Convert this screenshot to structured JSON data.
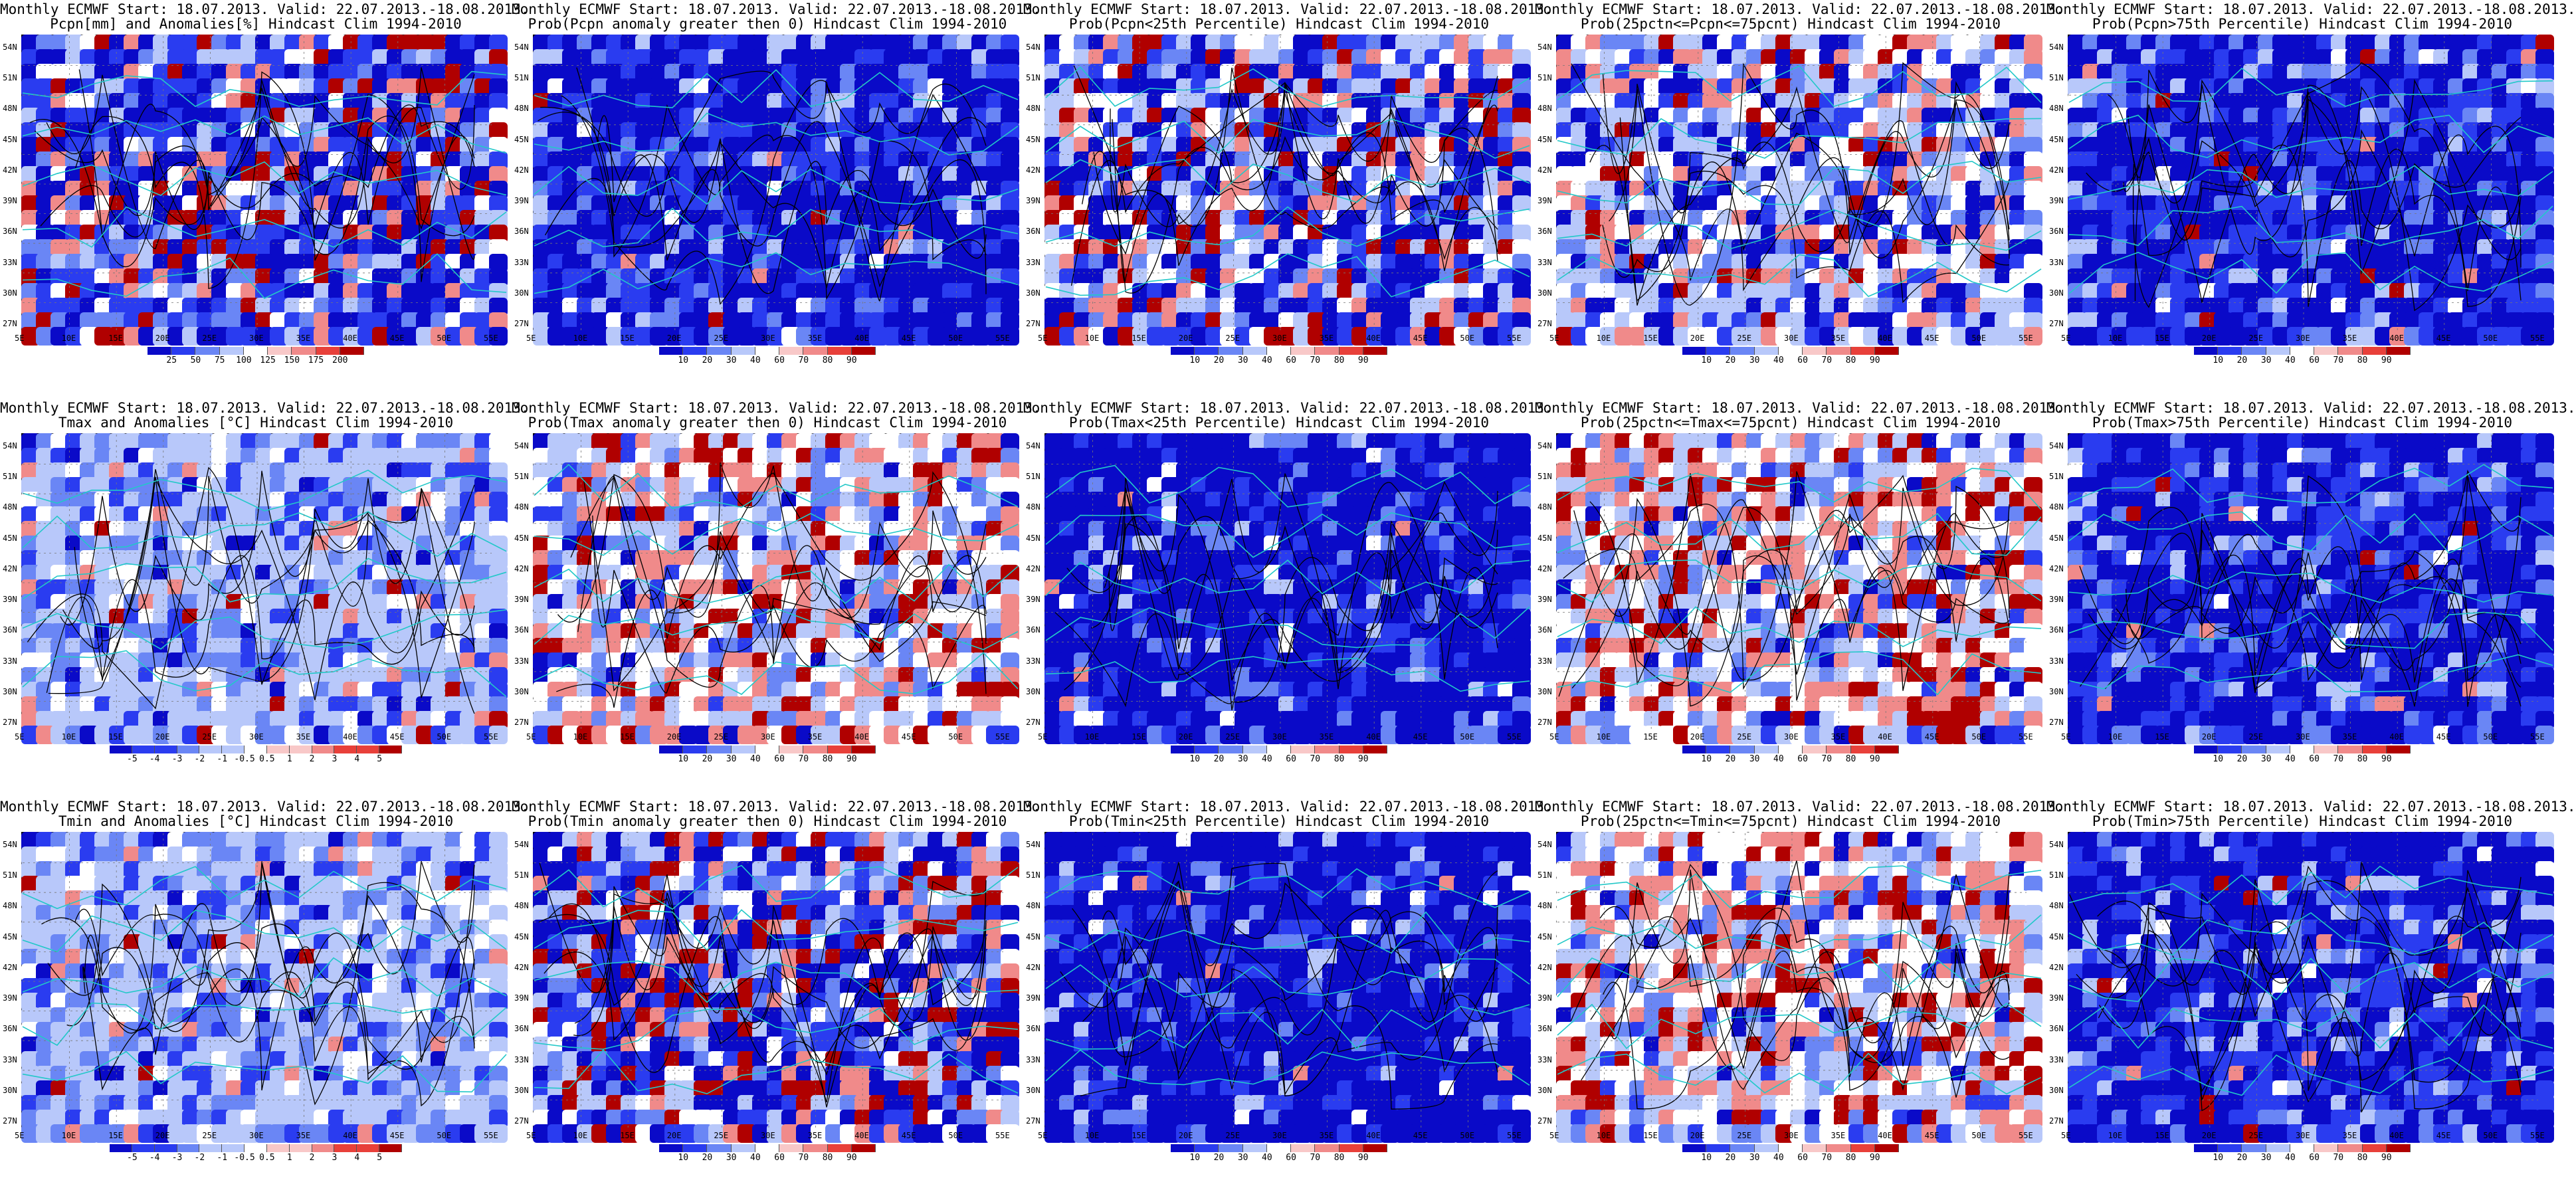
{
  "figure": {
    "rows": [
      {
        "variable": "Pcpn",
        "panels": [
          {
            "line1": "Monthly ECMWF Start: 18.07.2013. Valid: 22.07.2013.-18.08.2013.",
            "line2": "Pcpn[mm] and Anomalies[%] Hindcast Clim 1994-2010",
            "colorbar": [
              "25",
              "50",
              "75",
              "100",
              "125",
              "150",
              "175",
              "200"
            ],
            "scheme": "anom_pct"
          },
          {
            "line1": "Monthly ECMWF Start: 18.07.2013. Valid: 22.07.2013.-18.08.2013.",
            "line2": "Prob(Pcpn anomaly greater then 0) Hindcast Clim 1994-2010",
            "colorbar": [
              "10",
              "20",
              "30",
              "40",
              "60",
              "70",
              "80",
              "90"
            ],
            "scheme": "prob_blue"
          },
          {
            "line1": "Monthly ECMWF Start: 18.07.2013. Valid: 22.07.2013.-18.08.2013.",
            "line2": "Prob(Pcpn<25th Percentile) Hindcast Clim 1994-2010",
            "colorbar": [
              "10",
              "20",
              "30",
              "40",
              "60",
              "70",
              "80",
              "90"
            ],
            "scheme": "prob_mix"
          },
          {
            "line1": "Monthly ECMWF Start: 18.07.2013. Valid: 22.07.2013.-18.08.2013.",
            "line2": "Prob(25pctn<=Pcpn<=75pcnt) Hindcast Clim 1994-2010",
            "colorbar": [
              "10",
              "20",
              "30",
              "40",
              "60",
              "70",
              "80",
              "90"
            ],
            "scheme": "prob_light"
          },
          {
            "line1": "Monthly ECMWF Start: 18.07.2013. Valid: 22.07.2013.-18.08.2013.",
            "line2": "Prob(Pcpn>75th Percentile) Hindcast Clim 1994-2010",
            "colorbar": [
              "10",
              "20",
              "30",
              "40",
              "60",
              "70",
              "80",
              "90"
            ],
            "scheme": "prob_blue"
          }
        ]
      },
      {
        "variable": "Tmax",
        "panels": [
          {
            "line1": "Monthly ECMWF Start: 18.07.2013. Valid: 22.07.2013.-18.08.2013.",
            "line2": "Tmax and Anomalies [°C] Hindcast Clim 1994-2010",
            "colorbar": [
              "-5",
              "-4",
              "-3",
              "-2",
              "-1",
              "-0.5",
              "0.5",
              "1",
              "2",
              "3",
              "4",
              "5"
            ],
            "scheme": "anom_light"
          },
          {
            "line1": "Monthly ECMWF Start: 18.07.2013. Valid: 22.07.2013.-18.08.2013.",
            "line2": "Prob(Tmax anomaly greater then 0) Hindcast Clim 1994-2010",
            "colorbar": [
              "10",
              "20",
              "30",
              "40",
              "60",
              "70",
              "80",
              "90"
            ],
            "scheme": "prob_red"
          },
          {
            "line1": "Monthly ECMWF Start: 18.07.2013. Valid: 22.07.2013.-18.08.2013.",
            "line2": "Prob(Tmax<25th Percentile) Hindcast Clim 1994-2010",
            "colorbar": [
              "10",
              "20",
              "30",
              "40",
              "60",
              "70",
              "80",
              "90"
            ],
            "scheme": "prob_deepblue"
          },
          {
            "line1": "Monthly ECMWF Start: 18.07.2013. Valid: 22.07.2013.-18.08.2013.",
            "line2": "Prob(25pctn<=Tmax<=75pcnt) Hindcast Clim 1994-2010",
            "colorbar": [
              "10",
              "20",
              "30",
              "40",
              "60",
              "70",
              "80",
              "90"
            ],
            "scheme": "prob_red"
          },
          {
            "line1": "Monthly ECMWF Start: 18.07.2013. Valid: 22.07.2013.-18.08.2013.",
            "line2": "Prob(Tmax>75th Percentile) Hindcast Clim 1994-2010",
            "colorbar": [
              "10",
              "20",
              "30",
              "40",
              "60",
              "70",
              "80",
              "90"
            ],
            "scheme": "prob_blue"
          }
        ]
      },
      {
        "variable": "Tmin",
        "panels": [
          {
            "line1": "Monthly ECMWF Start: 18.07.2013. Valid: 22.07.2013.-18.08.2013.",
            "line2": "Tmin and Anomalies [°C] Hindcast Clim 1994-2010",
            "colorbar": [
              "-5",
              "-4",
              "-3",
              "-2",
              "-1",
              "-0.5",
              "0.5",
              "1",
              "2",
              "3",
              "4",
              "5"
            ],
            "scheme": "anom_light"
          },
          {
            "line1": "Monthly ECMWF Start: 18.07.2013. Valid: 22.07.2013.-18.08.2013.",
            "line2": "Prob(Tmin anomaly greater then 0) Hindcast Clim 1994-2010",
            "colorbar": [
              "10",
              "20",
              "30",
              "40",
              "60",
              "70",
              "80",
              "90"
            ],
            "scheme": "prob_mix"
          },
          {
            "line1": "Monthly ECMWF Start: 18.07.2013. Valid: 22.07.2013.-18.08.2013.",
            "line2": "Prob(Tmin<25th Percentile) Hindcast Clim 1994-2010",
            "colorbar": [
              "10",
              "20",
              "30",
              "40",
              "60",
              "70",
              "80",
              "90"
            ],
            "scheme": "prob_deepblue"
          },
          {
            "line1": "Monthly ECMWF Start: 18.07.2013. Valid: 22.07.2013.-18.08.2013.",
            "line2": "Prob(25pctn<=Tmin<=75pcnt) Hindcast Clim 1994-2010",
            "colorbar": [
              "10",
              "20",
              "30",
              "40",
              "60",
              "70",
              "80",
              "90"
            ],
            "scheme": "prob_red"
          },
          {
            "line1": "Monthly ECMWF Start: 18.07.2013. Valid: 22.07.2013.-18.08.2013.",
            "line2": "Prob(Tmin>75th Percentile) Hindcast Clim 1994-2010",
            "colorbar": [
              "10",
              "20",
              "30",
              "40",
              "60",
              "70",
              "80",
              "90"
            ],
            "scheme": "prob_blue"
          }
        ]
      }
    ],
    "lat_labels": [
      "54N",
      "51N",
      "48N",
      "45N",
      "42N",
      "39N",
      "36N",
      "33N",
      "30N",
      "27N"
    ],
    "lon_labels": [
      "5E",
      "10E",
      "15E",
      "20E",
      "25E",
      "30E",
      "35E",
      "40E",
      "45E",
      "50E",
      "55E"
    ],
    "colors": {
      "prob_scale": [
        "#0a0ac8",
        "#2a3cf0",
        "#6a86f5",
        "#b8c8fa",
        "#ffffff",
        "#f8c8c8",
        "#f08a8a",
        "#e8403a",
        "#b00000"
      ],
      "coast": "#22c8c8",
      "contour": "#000000"
    }
  }
}
